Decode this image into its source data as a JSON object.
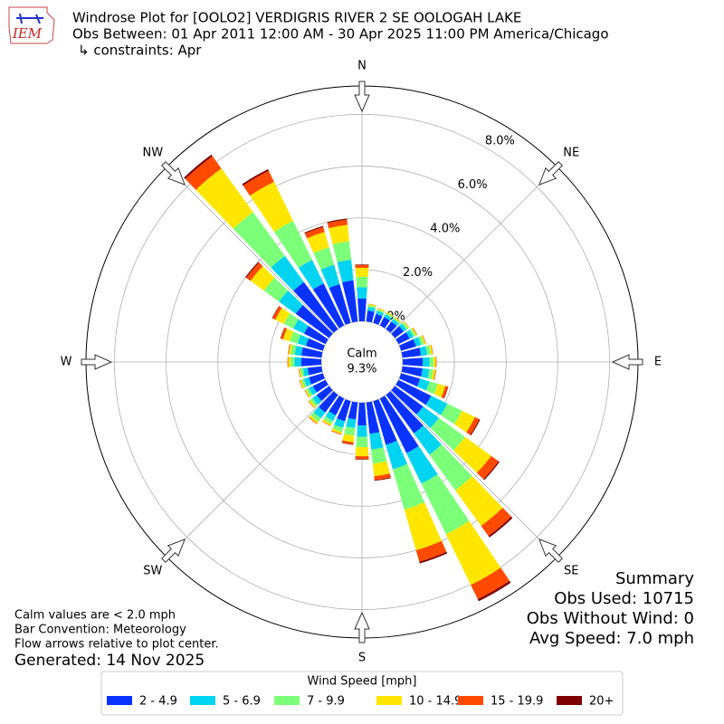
{
  "chart_data": {
    "type": "windrose",
    "title": "Windrose Plot for [OOLO2] VERDIGRIS RIVER 2 SE OOLOGAH LAKE",
    "subtitle": "Obs Between: 01 Apr 2011 12:00 AM - 30 Apr 2025 11:00 PM America/Chicago",
    "constraints": "↳ constraints: Apr",
    "logo_text": "IEM",
    "compass": [
      "N",
      "NE",
      "E",
      "SE",
      "S",
      "SW",
      "W",
      "NW"
    ],
    "calm_label": "Calm",
    "calm": {
      "value": 9.3,
      "label": "9.3%"
    },
    "x": [
      0,
      10,
      20,
      30,
      40,
      50,
      60,
      70,
      80,
      90,
      100,
      110,
      120,
      130,
      140,
      150,
      160,
      170,
      180,
      190,
      200,
      210,
      220,
      230,
      240,
      250,
      260,
      270,
      280,
      290,
      300,
      310,
      320,
      330,
      340,
      350
    ],
    "ylim": [
      0,
      9.1
    ],
    "yticks": [
      {
        "value": 0,
        "label": "0.0%"
      },
      {
        "value": 2,
        "label": "2.0%"
      },
      {
        "value": 4,
        "label": "4.0%"
      },
      {
        "value": 6,
        "label": "6.0%"
      },
      {
        "value": 8,
        "label": "8.0%"
      }
    ],
    "grid": true,
    "legend_title": "Wind Speed [mph]",
    "series": [
      {
        "name": "2 - 4.9",
        "color": "#0a32ff",
        "values": [
          0.88,
          0.42,
          0.36,
          0.36,
          0.36,
          0.42,
          0.48,
          0.6,
          0.72,
          0.78,
          0.78,
          0.76,
          1.4,
          1.35,
          1.84,
          2.35,
          1.76,
          1.22,
          0.88,
          0.66,
          0.81,
          0.72,
          0.84,
          0.6,
          0.54,
          0.57,
          0.54,
          0.78,
          0.78,
          0.68,
          0.92,
          1.6,
          2.25,
          1.81,
          1.56,
          1.6
        ]
      },
      {
        "name": "5 - 6.9",
        "color": "#00d4f0",
        "values": [
          0.44,
          0.14,
          0.12,
          0.12,
          0.12,
          0.14,
          0.16,
          0.2,
          0.24,
          0.26,
          0.26,
          0.38,
          0.7,
          0.75,
          1.02,
          1.31,
          0.98,
          0.61,
          0.44,
          0.33,
          0.27,
          0.24,
          0.28,
          0.2,
          0.18,
          0.19,
          0.18,
          0.26,
          0.26,
          0.34,
          0.46,
          0.8,
          1.25,
          1.01,
          0.78,
          0.8
        ]
      },
      {
        "name": "7 - 9.9",
        "color": "#7cff79",
        "values": [
          0.4,
          0.08,
          0.07,
          0.07,
          0.07,
          0.08,
          0.1,
          0.12,
          0.14,
          0.16,
          0.16,
          0.34,
          0.63,
          1.25,
          1.7,
          2.18,
          1.63,
          0.55,
          0.4,
          0.3,
          0.16,
          0.14,
          0.17,
          0.12,
          0.11,
          0.11,
          0.11,
          0.16,
          0.16,
          0.31,
          0.41,
          0.72,
          2.09,
          1.68,
          0.7,
          0.72
        ]
      },
      {
        "name": "10 - 14.9",
        "color": "#ffe600",
        "values": [
          0.35,
          0.04,
          0.04,
          0.04,
          0.04,
          0.04,
          0.05,
          0.06,
          0.07,
          0.08,
          0.08,
          0.3,
          0.56,
          1.25,
          1.7,
          2.18,
          1.63,
          0.49,
          0.35,
          0.26,
          0.08,
          0.07,
          0.08,
          0.06,
          0.05,
          0.06,
          0.05,
          0.08,
          0.08,
          0.27,
          0.37,
          0.64,
          2.09,
          1.68,
          0.62,
          0.64
        ]
      },
      {
        "name": "15 - 19.9",
        "color": "#ff4a00",
        "values": [
          0.11,
          0.01,
          0.01,
          0.01,
          0.01,
          0.01,
          0.02,
          0.02,
          0.02,
          0.03,
          0.03,
          0.1,
          0.18,
          0.35,
          0.48,
          0.61,
          0.46,
          0.15,
          0.11,
          0.08,
          0.03,
          0.02,
          0.03,
          0.02,
          0.02,
          0.02,
          0.02,
          0.03,
          0.03,
          0.09,
          0.12,
          0.2,
          0.58,
          0.47,
          0.2,
          0.2
        ]
      },
      {
        "name": "20+",
        "color": "#7f0000",
        "values": [
          0.02,
          0,
          0,
          0,
          0,
          0,
          0,
          0,
          0,
          0,
          0,
          0.02,
          0.04,
          0.05,
          0.07,
          0.09,
          0.07,
          0.03,
          0.02,
          0.02,
          0,
          0,
          0,
          0,
          0,
          0,
          0,
          0,
          0,
          0.02,
          0.02,
          0.04,
          0.08,
          0.07,
          0.04,
          0.04
        ]
      }
    ],
    "notes": [
      "Calm values are < 2.0 mph",
      "Bar Convention: Meteorology",
      "Flow arrows relative to plot center."
    ],
    "generated": "Generated: 14 Nov 2025",
    "summary": [
      "Summary",
      "Obs Used: 10715",
      "Obs Without Wind: 0",
      "Avg Speed: 7.0 mph"
    ]
  }
}
